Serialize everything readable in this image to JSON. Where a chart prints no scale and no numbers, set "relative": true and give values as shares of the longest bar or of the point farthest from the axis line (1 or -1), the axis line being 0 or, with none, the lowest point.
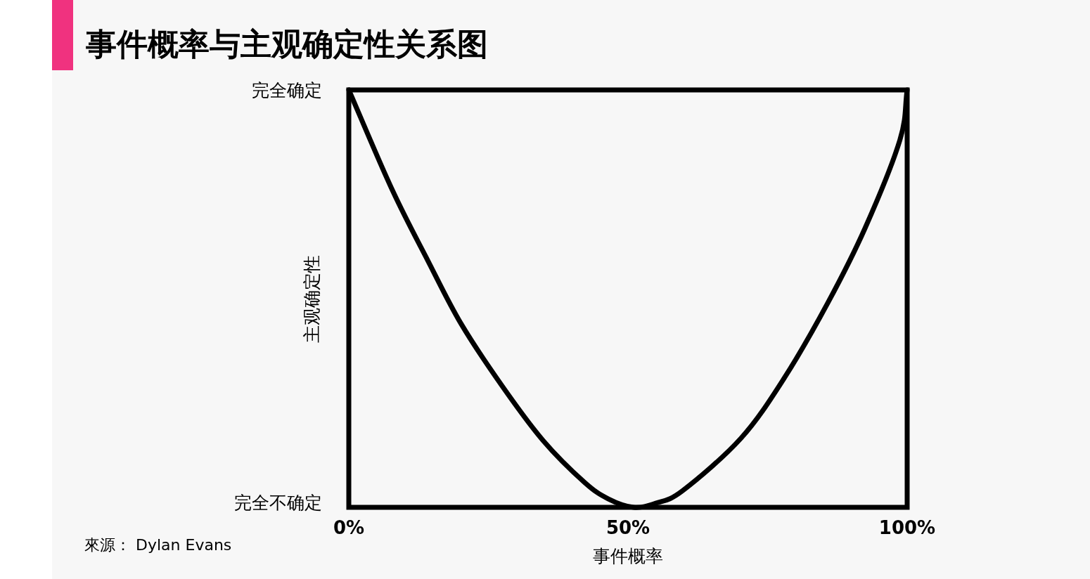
{
  "chart_data": {
    "type": "line",
    "title": "事件概率与主观确定性关系图",
    "xlabel": "事件概率",
    "ylabel": "主观确定性",
    "annotations": [
      "來源： Dylan Evans",
      {
        "text": "完全确定",
        "x": 0,
        "y": 1
      },
      "完全不确定"
    ],
    "relative": true,
    "x": [
      0,
      7.8,
      14.2,
      20.1,
      27.5,
      34.8,
      42.2,
      46.5,
      51,
      55,
      59.8,
      70.2,
      78.0,
      85.8,
      92.5,
      98.7,
      100
    ],
    "values": [
      1,
      0.76,
      0.59,
      0.44,
      0.29,
      0.16,
      0.06,
      0.02,
      0,
      0.01,
      0.04,
      0.165,
      0.31,
      0.49,
      0.67,
      0.88,
      1
    ],
    "color": "#000000",
    "xlim": [
      0,
      100
    ],
    "xticks": [
      {
        "value": 0,
        "label": "0%"
      },
      {
        "value": 50,
        "label": "50%"
      },
      {
        "value": 100,
        "label": "100%"
      }
    ]
  }
}
